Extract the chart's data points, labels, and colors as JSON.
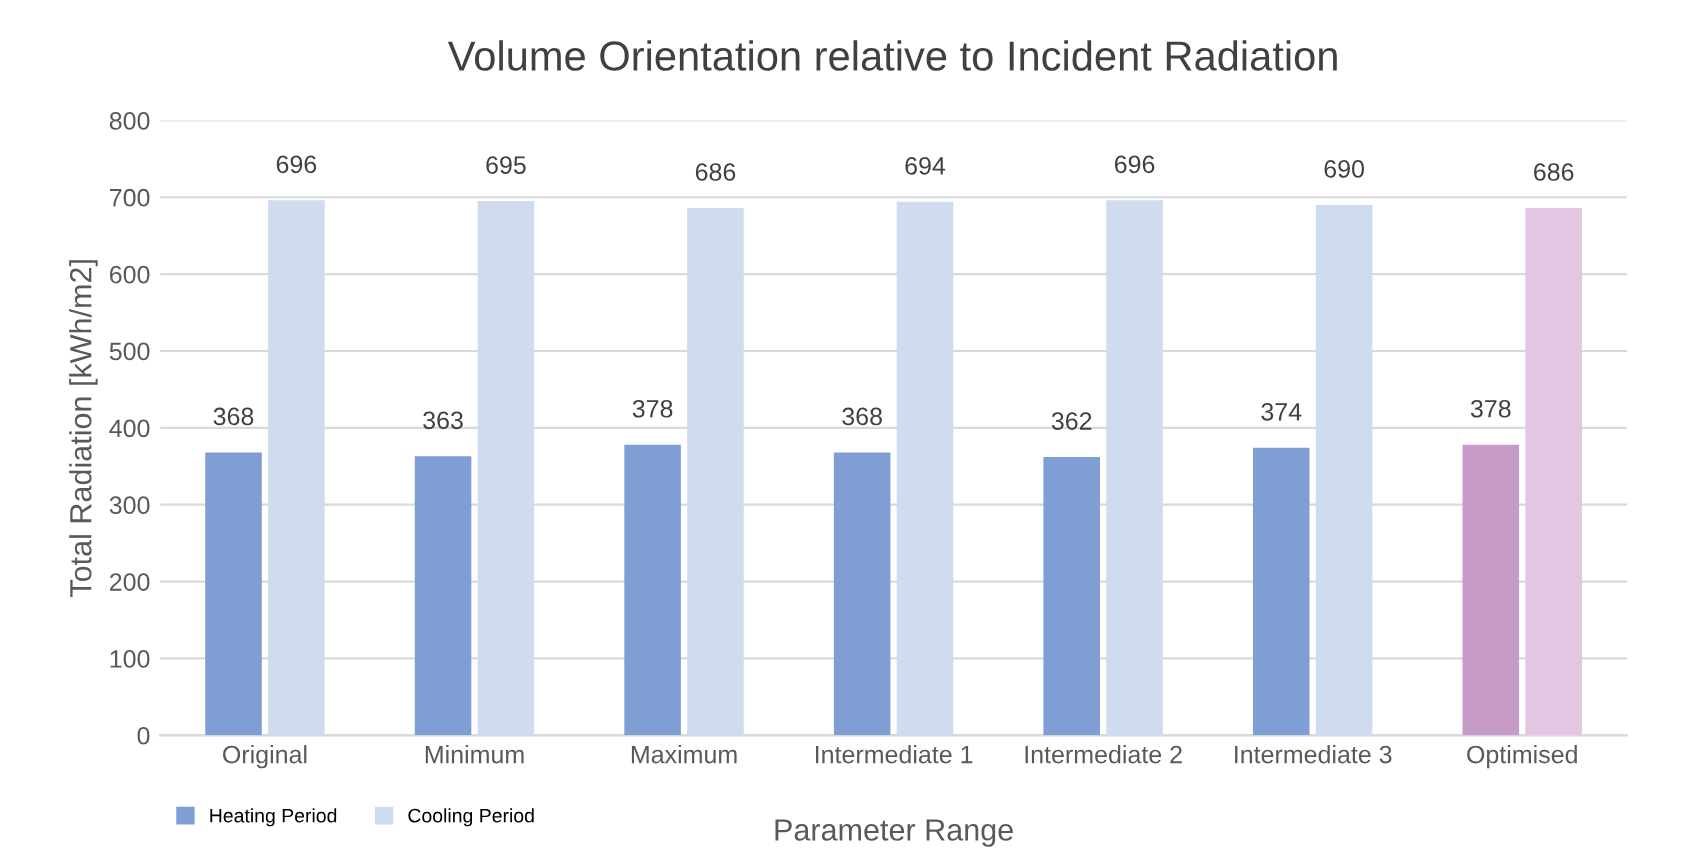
{
  "chart_data": {
    "type": "bar",
    "title": "Volume Orientation relative to Incident Radiation",
    "xlabel": "Parameter Range",
    "ylabel": "Total Radiation [kWh/m2]",
    "categories": [
      "Original",
      "Minimum",
      "Maximum",
      "Intermediate 1",
      "Intermediate 2",
      "Intermediate 3",
      "Optimised"
    ],
    "series": [
      {
        "name": "Heating Period",
        "color": "#7f9fd4",
        "colors": [
          "#7f9fd4",
          "#7f9fd4",
          "#7f9fd4",
          "#7f9fd4",
          "#7f9fd4",
          "#7f9fd4",
          "#c79bc8"
        ],
        "values": [
          368,
          363,
          378,
          368,
          362,
          374,
          378
        ]
      },
      {
        "name": "Cooling Period",
        "color": "#cfdbee",
        "colors": [
          "#cfdbee",
          "#cfdbee",
          "#cfdbee",
          "#cfdbee",
          "#cfdbee",
          "#cfdbee",
          "#e3c6e1"
        ],
        "values": [
          696,
          695,
          686,
          694,
          696,
          690,
          686
        ]
      }
    ],
    "ylim": [
      0,
      800
    ],
    "yticks": [
      0,
      100,
      200,
      300,
      400,
      500,
      600,
      700,
      800
    ],
    "grid": "y",
    "legend": "bottom left",
    "data_labels": true
  }
}
